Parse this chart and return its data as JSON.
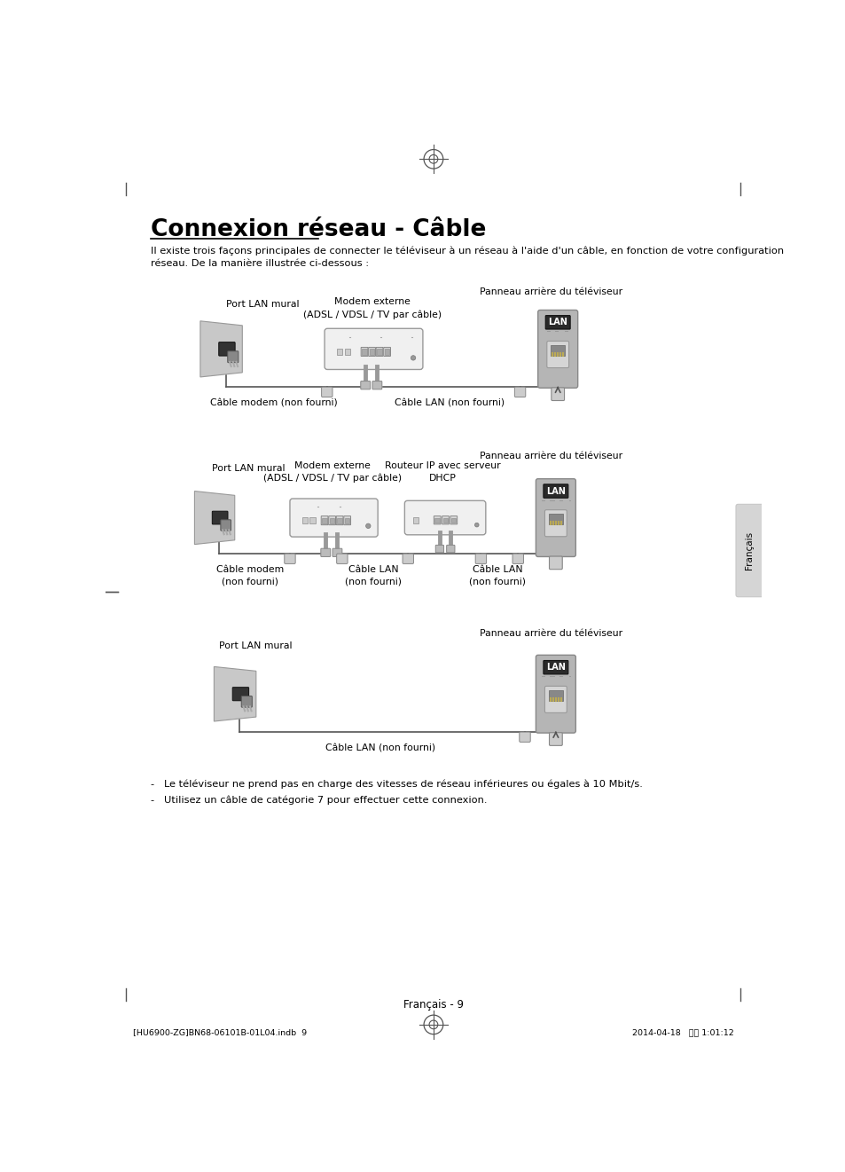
{
  "title": "Connexion réseau - Câble",
  "subtitle_line1": "Il existe trois façons principales de connecter le téléviseur à un réseau à l'aide d'un câble, en fonction de votre configuration",
  "subtitle_line2": "réseau. De la manière illustrée ci-dessous :",
  "page_number": "Français - 9",
  "footer_left": "[HU6900-ZG]BN68-06101B-01L04.indb  9",
  "footer_right": "2014-04-18   오후 1:01:12",
  "bullet1": "-   Le téléviseur ne prend pas en charge des vitesses de réseau inférieures ou égales à 10 Mbit/s.",
  "bullet2": "-   Utilisez un câble de catégorie 7 pour effectuer cette connexion.",
  "sidebar_text": "Français",
  "d1_panneau": "Panneau arrière du téléviseur",
  "d1_port": "Port LAN mural",
  "d1_modem": "Modem externe\n(ADSL / VDSL / TV par câble)",
  "d1_cable_modem": "Câble modem (non fourni)",
  "d1_cable_lan": "Câble LAN (non fourni)",
  "d2_panneau": "Panneau arrière du téléviseur",
  "d2_port": "Port LAN mural",
  "d2_modem": "Modem externe\n(ADSL / VDSL / TV par câble)",
  "d2_routeur": "Routeur IP avec serveur\nDHCP",
  "d2_cable_modem": "Câble modem\n(non fourni)",
  "d2_cable_lan1": "Câble LAN\n(non fourni)",
  "d2_cable_lan2": "Câble LAN\n(non fourni)",
  "d3_panneau": "Panneau arrière du téléviseur",
  "d3_port": "Port LAN mural",
  "d3_cable_lan": "Câble LAN (non fourni)",
  "bg_color": "#ffffff",
  "text_color": "#000000"
}
